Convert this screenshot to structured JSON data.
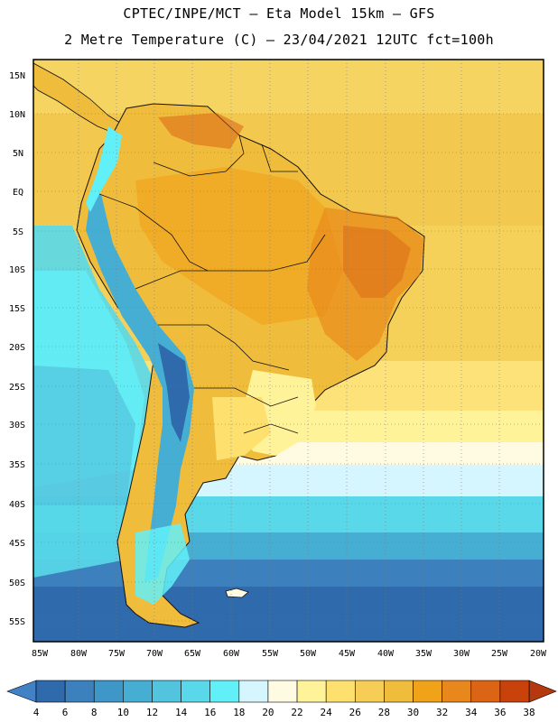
{
  "header": {
    "line1": "CPTEC/INPE/MCT –  Eta Model 15km – GFS",
    "line2": "2 Metre Temperature (C) – 23/04/2021 12UTC fct=100h"
  },
  "map": {
    "lat_labels": [
      "15N",
      "10N",
      "5N",
      "EQ",
      "5S",
      "10S",
      "15S",
      "20S",
      "25S",
      "30S",
      "35S",
      "40S",
      "45S",
      "50S",
      "55S"
    ],
    "lon_labels": [
      "85W",
      "80W",
      "75W",
      "70W",
      "65W",
      "60W",
      "55W",
      "50W",
      "45W",
      "40W",
      "35W",
      "30W",
      "25W",
      "20W"
    ]
  },
  "colorbar": {
    "labels": [
      "4",
      "6",
      "8",
      "10",
      "12",
      "14",
      "16",
      "18",
      "20",
      "22",
      "24",
      "26",
      "28",
      "30",
      "32",
      "34",
      "36",
      "38"
    ],
    "colors": [
      "#2f6aad",
      "#3c80bd",
      "#3f97c7",
      "#47aed3",
      "#52c4de",
      "#58d8e9",
      "#62f0f8",
      "#d6f6ff",
      "#fffbe3",
      "#fff39a",
      "#fde06e",
      "#f6cd55",
      "#f0bc3b",
      "#f0a219",
      "#e8871c",
      "#db6515",
      "#c9420c"
    ],
    "low_color": "#4182c6",
    "high_color": "#b5380e"
  }
}
